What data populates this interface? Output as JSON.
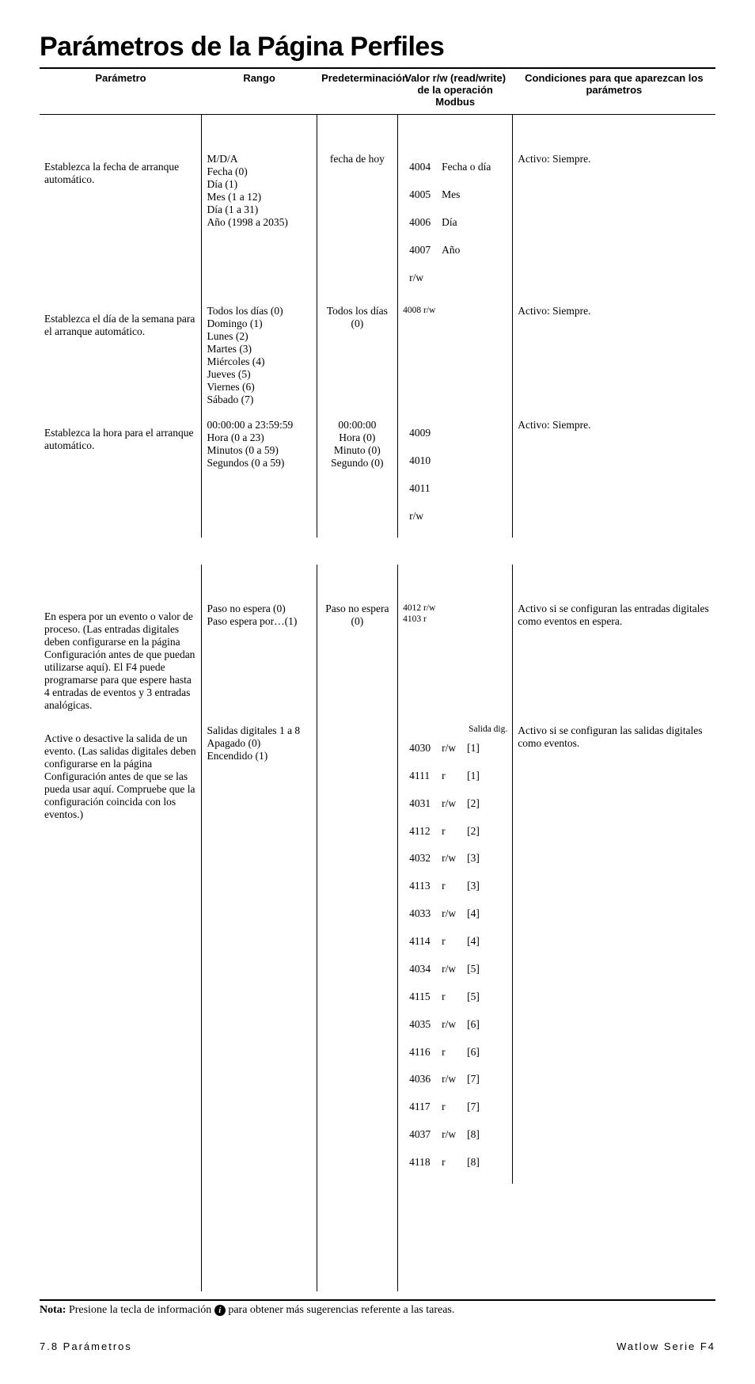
{
  "title": "Parámetros de la Página Perfiles",
  "columns": {
    "c1": "Parámetro",
    "c2": "Rango",
    "c3": "Predeterminación",
    "c4": "Valor r/w (read/write)\nde la operación Modbus",
    "c5": "Condiciones para que aparezcan los parámetros"
  },
  "col_widths": [
    "24%",
    "17%",
    "12%",
    "17%",
    "30%"
  ],
  "rows": [
    {
      "param": "Establezca la fecha de arranque automático.",
      "param_pad_top": true,
      "rango": "M/D/A\nFecha (0)\nDía (1)\nMes (1 a 12)\nDía (1 a 31)\nAño (1998 a 2035)",
      "pred": "fecha de hoy",
      "modbus_grid": [
        [
          "4004",
          "Fecha o día"
        ],
        [
          "4005",
          "Mes"
        ],
        [
          "4006",
          "Día"
        ],
        [
          "4007",
          "Año"
        ],
        [
          "r/w",
          ""
        ]
      ],
      "cond": "Activo: Siempre."
    },
    {
      "param": "Establezca el día de la semana para el arranque automático.",
      "param_pad_top": true,
      "rango": "Todos los días (0)\nDomingo (1)\nLunes (2)\nMartes (3)\nMiércoles (4)\nJueves (5)\nViernes (6)\nSábado (7)",
      "pred": "Todos los días (0)",
      "modbus_text": "4008 r/w",
      "cond": "Activo: Siempre."
    },
    {
      "param": "Establezca la hora para el arranque automático.",
      "param_pad_top": true,
      "rango": "00:00:00 a 23:59:59\nHora (0 a 23)\nMinutos (0 a 59)\nSegundos (0 a 59)",
      "pred": "00:00:00\nHora (0)\nMinuto (0)\nSegundo (0)",
      "modbus_grid": [
        [
          "4009",
          ""
        ],
        [
          "4010",
          ""
        ],
        [
          "4011",
          ""
        ],
        [
          "r/w",
          ""
        ]
      ],
      "cond": "Activo: Siempre."
    }
  ],
  "rows2": [
    {
      "param": "En espera por un evento o valor de proceso. (Las entradas digitales deben configurarse en la página Configuración antes de que puedan utilizarse aquí). El F4 puede programarse para que espere hasta 4 entradas de eventos y 3 entradas analógicas.",
      "param_pad_top": true,
      "rango": "Paso no espera (0)\nPaso espera por…(1)",
      "pred": "Paso no espera (0)",
      "modbus_text": "4012 r/w\n4103 r",
      "cond": "Activo si se configuran las entradas digitales como eventos en espera."
    },
    {
      "param": "Active o desactive la salida de un evento. (Las salidas digitales deben configurarse en la página Configuración antes de que se las pueda usar aquí. Compruebe que la configuración coincida con los eventos.)",
      "param_pad_top": true,
      "rango": "Salidas digitales 1 a 8\nApagado (0)\nEncendido (1)",
      "pred": "",
      "modbus_label": "Salida dig.",
      "modbus_grid": [
        [
          "4030",
          "r/w",
          "[1]"
        ],
        [
          "4111",
          "r",
          "[1]"
        ],
        [
          "4031",
          "r/w",
          "[2]"
        ],
        [
          "4112",
          "r",
          "[2]"
        ],
        [
          "4032",
          "r/w",
          "[3]"
        ],
        [
          "4113",
          "r",
          "[3]"
        ],
        [
          "4033",
          "r/w",
          "[4]"
        ],
        [
          "4114",
          "r",
          "[4]"
        ],
        [
          "4034",
          "r/w",
          "[5]"
        ],
        [
          "4115",
          "r",
          "[5]"
        ],
        [
          "4035",
          "r/w",
          "[6]"
        ],
        [
          "4116",
          "r",
          "[6]"
        ],
        [
          "4036",
          "r/w",
          "[7]"
        ],
        [
          "4117",
          "r",
          "[7]"
        ],
        [
          "4037",
          "r/w",
          "[8]"
        ],
        [
          "4118",
          "r",
          "[8]"
        ]
      ],
      "cond": "Activo si se configuran las salidas digitales como eventos."
    }
  ],
  "note_bold": "Nota:",
  "note_text1": " Presione la tecla de información ",
  "note_text2": "  para obtener más sugerencias referente a las tareas.",
  "footer_left": "7.8   Parámetros",
  "footer_right": "Watlow Serie F4"
}
